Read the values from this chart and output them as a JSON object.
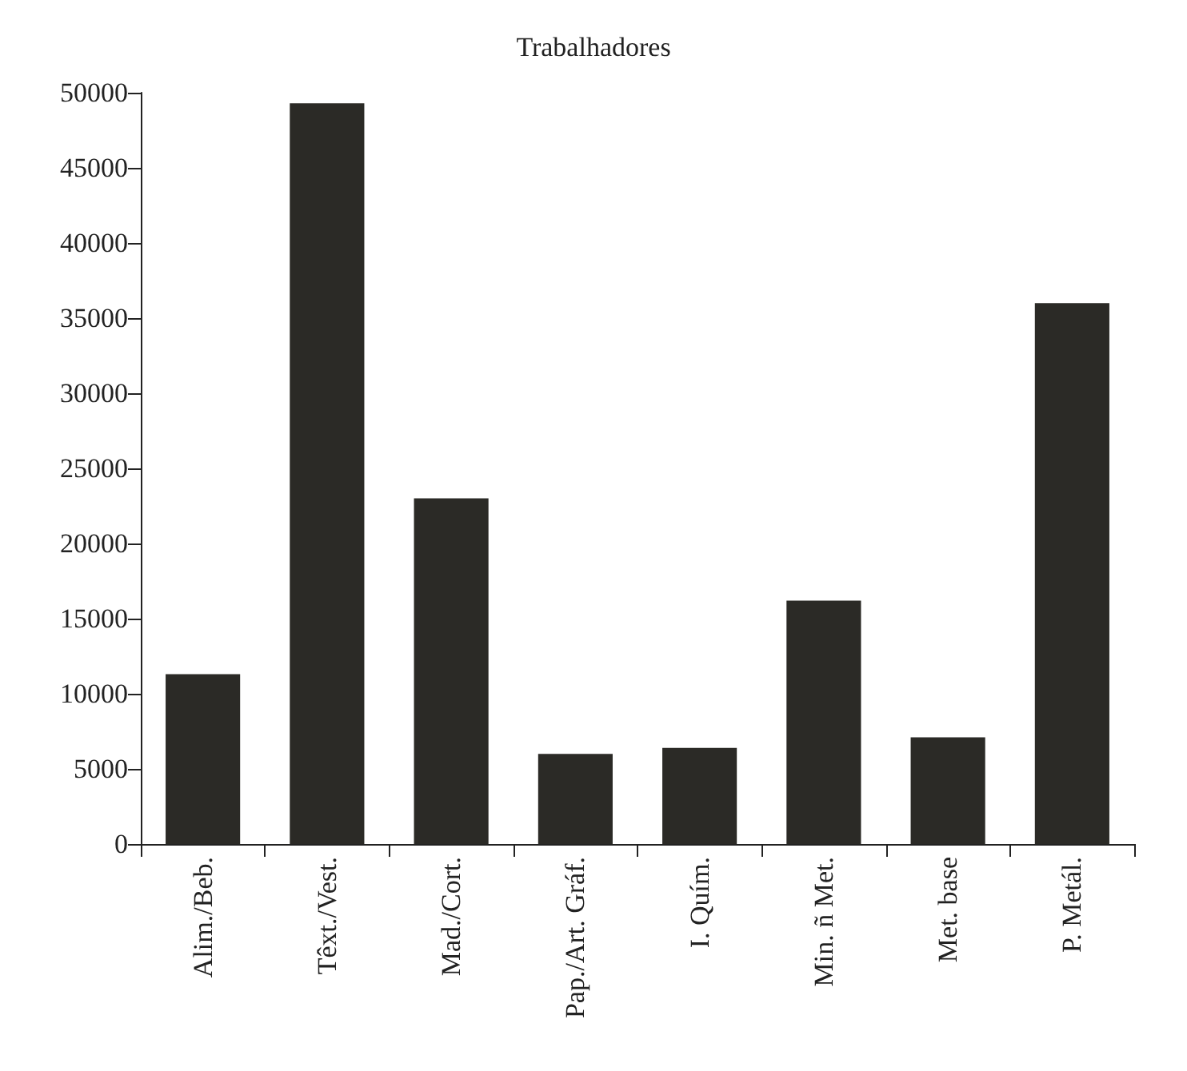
{
  "chart_data": {
    "type": "bar",
    "title": "Trabalhadores",
    "categories": [
      "Alim./Beb.",
      "Têxt./Vest.",
      "Mad./Cort.",
      "Pap./Art. Gráf.",
      "I. Quím.",
      "Min. ñ Met.",
      "Met. base",
      "P. Metál."
    ],
    "values": [
      11300,
      49300,
      23000,
      6000,
      6400,
      16200,
      7100,
      36000
    ],
    "color": "#2b2a26",
    "ylim": [
      0,
      50000
    ],
    "yticks": [
      0,
      5000,
      10000,
      15000,
      20000,
      25000,
      30000,
      35000,
      40000,
      45000,
      50000
    ],
    "grid": false
  }
}
